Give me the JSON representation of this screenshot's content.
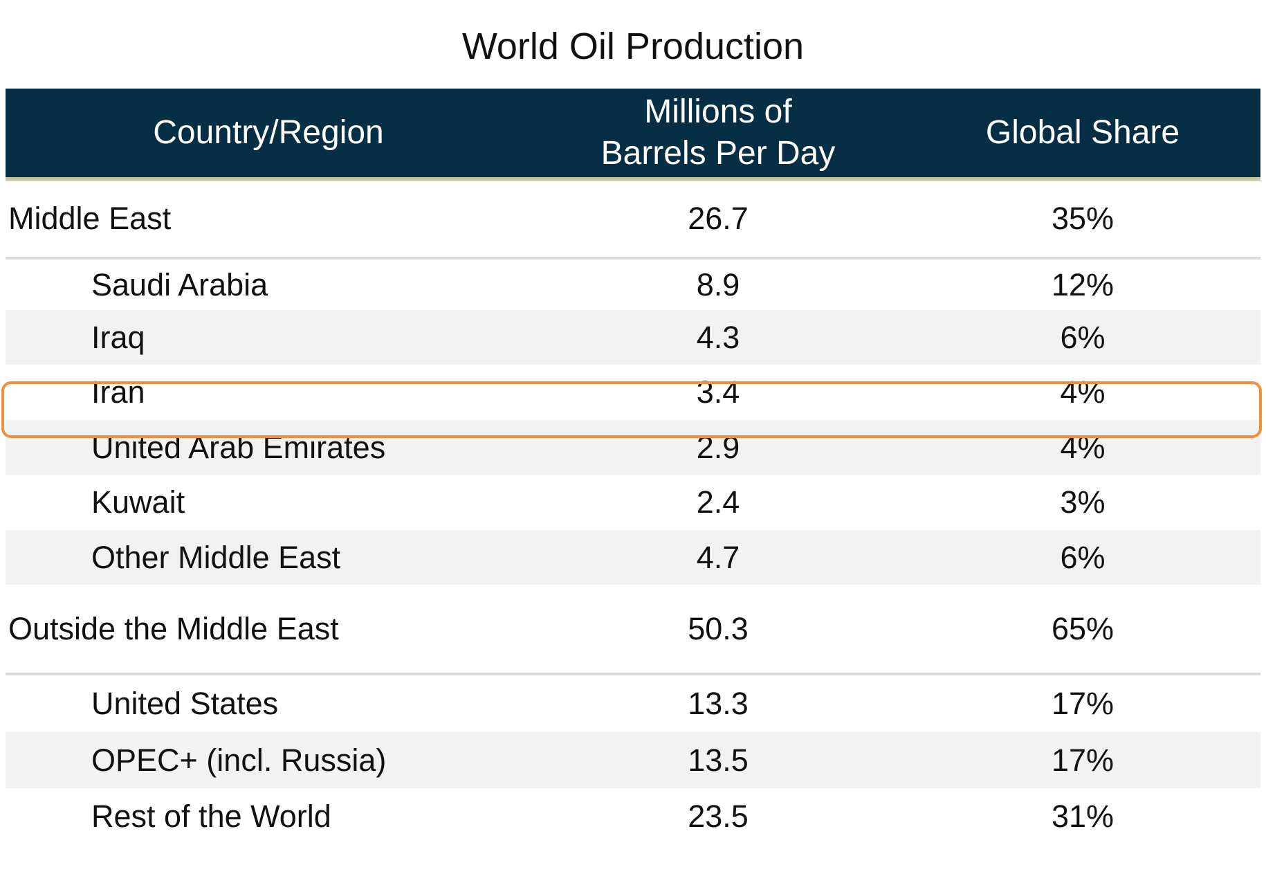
{
  "title": "World Oil Production",
  "headers": {
    "country": "Country/Region",
    "barrels_line1": "Millions of",
    "barrels_line2": "Barrels Per Day",
    "share": "Global Share"
  },
  "colors": {
    "header_bg": "#062f45",
    "header_rule": "#c8c29a",
    "stripe": "#f2f2f2",
    "highlight": "#f0903a"
  },
  "rows": [
    {
      "country": "Middle East",
      "barrels": "26.7",
      "share": "35%"
    },
    {
      "country": "Saudi Arabia",
      "barrels": "8.9",
      "share": "12%"
    },
    {
      "country": "Iraq",
      "barrels": "4.3",
      "share": "6%"
    },
    {
      "country": "Iran",
      "barrels": "3.4",
      "share": "4%"
    },
    {
      "country": "United Arab Emirates",
      "barrels": "2.9",
      "share": "4%"
    },
    {
      "country": "Kuwait",
      "barrels": "2.4",
      "share": "3%"
    },
    {
      "country": "Other Middle East",
      "barrels": "4.7",
      "share": "6%"
    },
    {
      "country": "Outside the Middle East",
      "barrels": "50.3",
      "share": "65%"
    },
    {
      "country": "United States",
      "barrels": "13.3",
      "share": "17%"
    },
    {
      "country": "OPEC+ (incl. Russia)",
      "barrels": "13.5",
      "share": "17%"
    },
    {
      "country": "Rest of the World",
      "barrels": "23.5",
      "share": "31%"
    }
  ],
  "chart_data": {
    "type": "table",
    "title": "World Oil Production",
    "columns": [
      "Country/Region",
      "Millions of Barrels Per Day",
      "Global Share"
    ],
    "rows": [
      [
        "Middle East",
        26.7,
        "35%"
      ],
      [
        "Saudi Arabia",
        8.9,
        "12%"
      ],
      [
        "Iraq",
        4.3,
        "6%"
      ],
      [
        "Iran",
        3.4,
        "4%"
      ],
      [
        "United Arab Emirates",
        2.9,
        "4%"
      ],
      [
        "Kuwait",
        2.4,
        "3%"
      ],
      [
        "Other Middle East",
        4.7,
        "6%"
      ],
      [
        "Outside the Middle East",
        50.3,
        "65%"
      ],
      [
        "United States",
        13.3,
        "17%"
      ],
      [
        "OPEC+ (incl. Russia)",
        13.5,
        "17%"
      ],
      [
        "Rest of the World",
        23.5,
        "31%"
      ]
    ],
    "highlighted_row": "Iran"
  }
}
